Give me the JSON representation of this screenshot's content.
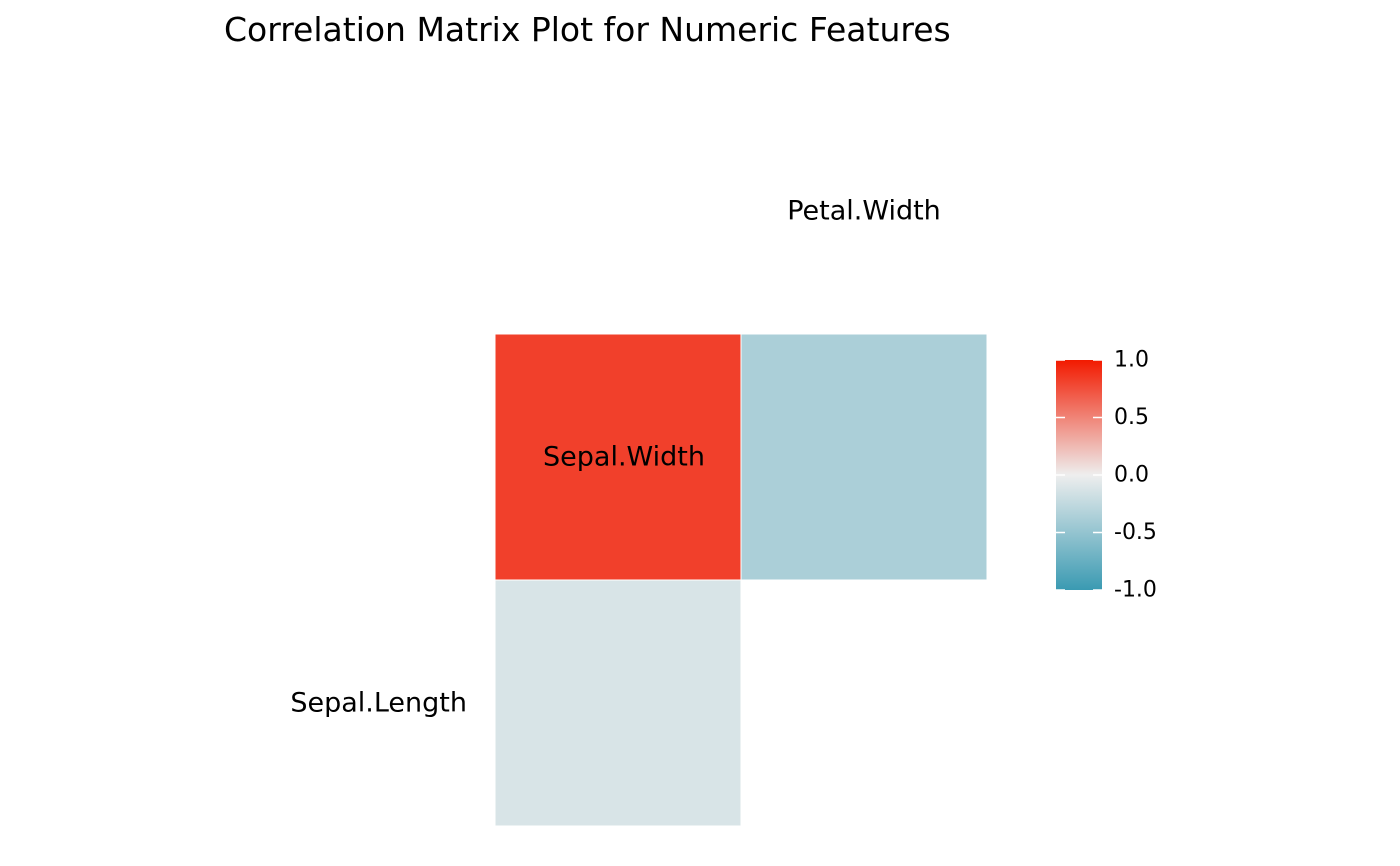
{
  "chart_data": {
    "type": "heatmap",
    "title": "Correlation Matrix Plot for Numeric Features",
    "layout": "lower-triangle",
    "columns": [
      "Sepal.Length",
      "Sepal.Width",
      "Petal.Width"
    ],
    "rows": [
      "Sepal.Width",
      "Petal.Width"
    ],
    "variable_labels": [
      "Sepal.Length",
      "Sepal.Width",
      "Petal.Width"
    ],
    "cells": [
      {
        "row": "Sepal.Width",
        "col": "Sepal.Length",
        "value": -0.12
      },
      {
        "row": "Petal.Width",
        "col": "Sepal.Length",
        "value": 0.82
      },
      {
        "row": "Petal.Width",
        "col": "Sepal.Width",
        "value": -0.37
      }
    ],
    "color_scale": {
      "low": "#3A9AB2",
      "mid": "#EEEEEE",
      "high": "#F21A00",
      "limits": [
        -1,
        1
      ],
      "ticks": [
        1.0,
        0.5,
        0.0,
        -0.5,
        -1.0
      ],
      "tick_labels": [
        "1.0",
        "0.5",
        "0.0",
        "-0.5",
        "-1.0"
      ]
    },
    "legend": "right",
    "grid": false
  }
}
